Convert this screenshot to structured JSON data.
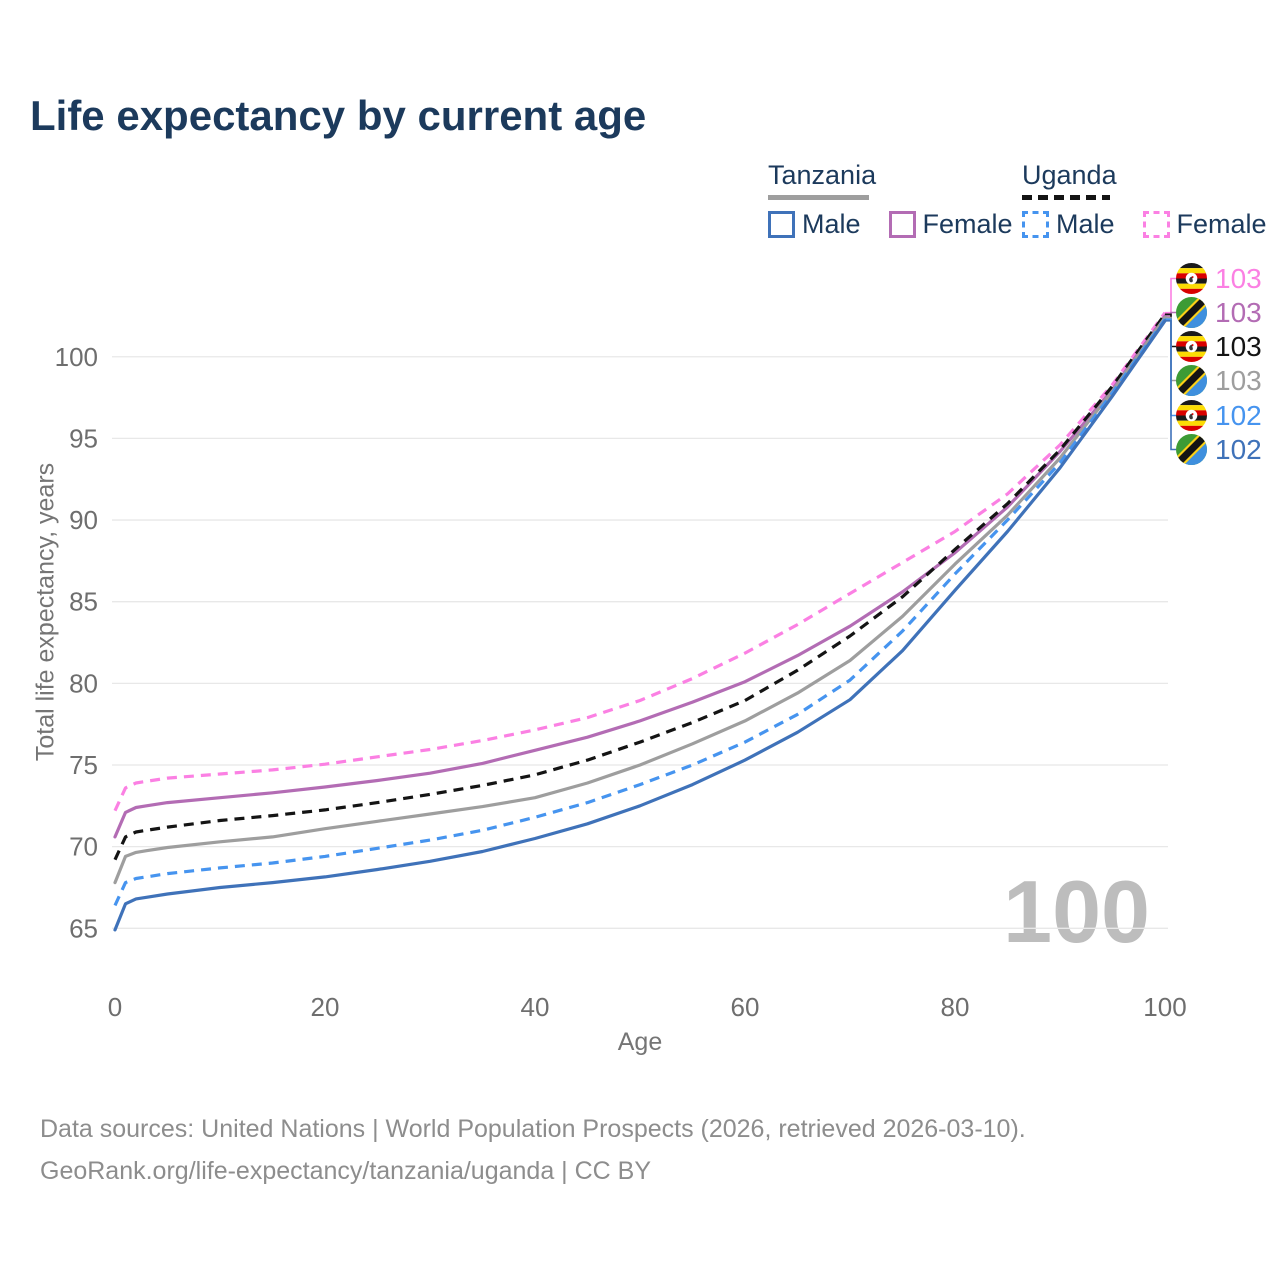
{
  "title": "Life expectancy by current age",
  "legend": {
    "groups": [
      {
        "country": "Tanzania",
        "items": [
          {
            "label": "Male"
          },
          {
            "label": "Female"
          }
        ]
      },
      {
        "country": "Uganda",
        "items": [
          {
            "label": "Male"
          },
          {
            "label": "Female"
          }
        ]
      }
    ]
  },
  "watermark": "100",
  "end_labels": [
    {
      "flag": "uganda",
      "value": "103"
    },
    {
      "flag": "tanzania",
      "value": "103"
    },
    {
      "flag": "uganda",
      "value": "103"
    },
    {
      "flag": "tanzania",
      "value": "103"
    },
    {
      "flag": "uganda",
      "value": "102"
    },
    {
      "flag": "tanzania",
      "value": "102"
    }
  ],
  "footer": {
    "line1": "Data sources: United Nations | World Population Prospects (2026, retrieved 2026-03-10).",
    "line2": "GeoRank.org/life-expectancy/tanzania/uganda | CC BY"
  },
  "chart_data": {
    "type": "line",
    "title": "Life expectancy by current age",
    "xlabel": "Age",
    "ylabel": "Total life expectancy, years",
    "x_ticks": [
      0,
      20,
      40,
      60,
      80,
      100
    ],
    "y_ticks": [
      65,
      70,
      75,
      80,
      85,
      90,
      95,
      100
    ],
    "xlim": [
      0,
      100
    ],
    "ylim": [
      64,
      103.5
    ],
    "grid": "horizontal",
    "legend_position": "top-right",
    "ages": [
      0,
      1,
      2,
      3,
      5,
      10,
      15,
      20,
      25,
      30,
      35,
      40,
      45,
      50,
      55,
      60,
      65,
      70,
      75,
      80,
      85,
      90,
      95,
      100
    ],
    "series": [
      {
        "id": "ug-female",
        "name": "Uganda Female",
        "country": "Uganda",
        "sex": "Female",
        "color": "#fb80e3",
        "dashed": true,
        "end_label": "103",
        "values": [
          72.2,
          73.6,
          73.9,
          74.0,
          74.2,
          74.45,
          74.7,
          75.05,
          75.5,
          75.95,
          76.5,
          77.15,
          77.9,
          78.95,
          80.3,
          81.85,
          83.6,
          85.5,
          87.4,
          89.3,
          91.6,
          94.6,
          98.3,
          102.7
        ]
      },
      {
        "id": "tz-female",
        "name": "Tanzania Female",
        "country": "Tanzania",
        "sex": "Female",
        "color": "#b36cb4",
        "dashed": false,
        "end_label": "103",
        "values": [
          70.6,
          72.1,
          72.4,
          72.5,
          72.7,
          73.0,
          73.3,
          73.65,
          74.05,
          74.5,
          75.1,
          75.9,
          76.7,
          77.7,
          78.85,
          80.1,
          81.7,
          83.5,
          85.6,
          88.0,
          90.8,
          94.2,
          98.0,
          102.5
        ]
      },
      {
        "id": "ug-both",
        "name": "Uganda",
        "country": "Uganda",
        "sex": "Both",
        "color": "#141414",
        "dashed": true,
        "end_label": "103",
        "values": [
          69.2,
          70.6,
          70.9,
          71.0,
          71.2,
          71.6,
          71.9,
          72.25,
          72.7,
          73.2,
          73.75,
          74.4,
          75.3,
          76.4,
          77.6,
          78.95,
          80.8,
          82.9,
          85.3,
          88.2,
          91.0,
          94.3,
          98.2,
          102.6
        ]
      },
      {
        "id": "tz-both",
        "name": "Tanzania",
        "country": "Tanzania",
        "sex": "Both",
        "color": "#9e9e9e",
        "dashed": false,
        "end_label": "103",
        "values": [
          67.8,
          69.4,
          69.65,
          69.75,
          69.95,
          70.3,
          70.6,
          71.1,
          71.55,
          72.0,
          72.45,
          73.0,
          73.9,
          75.0,
          76.3,
          77.7,
          79.4,
          81.4,
          84.1,
          87.3,
          90.3,
          93.8,
          97.9,
          102.4
        ]
      },
      {
        "id": "ug-male",
        "name": "Uganda Male",
        "country": "Uganda",
        "sex": "Male",
        "color": "#4694ef",
        "dashed": true,
        "end_label": "102",
        "values": [
          66.4,
          67.8,
          68.05,
          68.15,
          68.35,
          68.7,
          69.0,
          69.4,
          69.9,
          70.4,
          71.0,
          71.8,
          72.7,
          73.8,
          75.0,
          76.4,
          78.1,
          80.2,
          83.2,
          86.7,
          90.0,
          93.5,
          97.8,
          102.3
        ]
      },
      {
        "id": "tz-male",
        "name": "Tanzania Male",
        "country": "Tanzania",
        "sex": "Male",
        "color": "#3f72b9",
        "dashed": false,
        "end_label": "102",
        "values": [
          64.9,
          66.5,
          66.8,
          66.9,
          67.1,
          67.5,
          67.8,
          68.15,
          68.6,
          69.1,
          69.7,
          70.5,
          71.4,
          72.5,
          73.8,
          75.3,
          77.0,
          79.0,
          82.0,
          85.7,
          89.3,
          93.2,
          97.6,
          102.2
        ]
      }
    ]
  }
}
